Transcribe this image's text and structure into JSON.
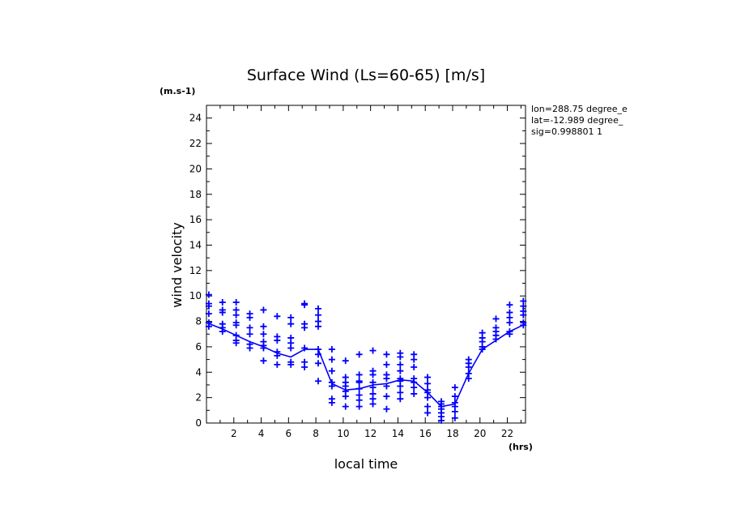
{
  "chart_data": {
    "type": "scatter",
    "title": "Surface Wind  (Ls=60-65) [m/s]",
    "xlabel": "local time",
    "ylabel": "wind velocity",
    "x_unit": "(hrs)",
    "y_unit": "(m.s-1)",
    "info": [
      "lon=288.75 degree_e",
      "lat=-12.989 degree_",
      "sig=0.998801 1"
    ],
    "xlim": [
      0,
      23.33
    ],
    "ylim": [
      0,
      25
    ],
    "xticks": [
      2,
      4,
      6,
      8,
      10,
      12,
      14,
      16,
      18,
      20,
      22
    ],
    "yticks": [
      0,
      2,
      4,
      6,
      8,
      10,
      12,
      14,
      16,
      18,
      20,
      22,
      24
    ],
    "grid": false,
    "color": "#0000ff",
    "series": [
      {
        "kind": "line",
        "x": [
          0,
          1.17,
          2.17,
          3.17,
          4.17,
          5.17,
          6.17,
          7.17,
          8.17,
          9.17,
          10.17,
          11.17,
          12.17,
          13.17,
          14.17,
          15.17,
          16.17,
          17.17,
          18.17,
          19.17,
          20.17,
          21.17,
          22.17,
          23.33
        ],
        "y": [
          7.9,
          7.4,
          6.9,
          6.4,
          6.0,
          5.5,
          5.2,
          5.8,
          5.8,
          3.1,
          2.6,
          2.7,
          3.0,
          3.1,
          3.4,
          3.3,
          2.4,
          1.3,
          1.5,
          3.9,
          5.8,
          6.5,
          7.2,
          7.8
        ]
      },
      {
        "kind": "markers",
        "marker": "+",
        "points": [
          [
            0.17,
            10.1
          ],
          [
            0.17,
            9.4
          ],
          [
            0.17,
            9.2
          ],
          [
            0.17,
            8.6
          ],
          [
            0.17,
            7.9
          ],
          [
            0.17,
            7.6
          ],
          [
            1.17,
            9.5
          ],
          [
            1.17,
            8.9
          ],
          [
            1.17,
            8.7
          ],
          [
            1.17,
            7.8
          ],
          [
            1.17,
            7.5
          ],
          [
            1.17,
            7.2
          ],
          [
            2.17,
            9.5
          ],
          [
            2.17,
            8.9
          ],
          [
            2.17,
            8.5
          ],
          [
            2.17,
            7.9
          ],
          [
            2.17,
            7.7
          ],
          [
            2.17,
            6.9
          ],
          [
            2.17,
            6.5
          ],
          [
            2.17,
            6.3
          ],
          [
            3.17,
            8.6
          ],
          [
            3.17,
            8.3
          ],
          [
            3.17,
            7.5
          ],
          [
            3.17,
            7.0
          ],
          [
            3.17,
            6.2
          ],
          [
            3.17,
            5.9
          ],
          [
            4.17,
            8.9
          ],
          [
            4.17,
            7.6
          ],
          [
            4.17,
            7.0
          ],
          [
            4.17,
            6.4
          ],
          [
            4.17,
            6.1
          ],
          [
            4.17,
            5.9
          ],
          [
            4.17,
            4.9
          ],
          [
            5.17,
            8.4
          ],
          [
            5.17,
            6.8
          ],
          [
            5.17,
            6.5
          ],
          [
            5.17,
            5.6
          ],
          [
            5.17,
            5.3
          ],
          [
            5.17,
            4.6
          ],
          [
            6.17,
            8.3
          ],
          [
            6.17,
            7.8
          ],
          [
            6.17,
            6.7
          ],
          [
            6.17,
            6.3
          ],
          [
            6.17,
            5.9
          ],
          [
            6.17,
            4.8
          ],
          [
            6.17,
            4.6
          ],
          [
            7.17,
            9.4
          ],
          [
            7.17,
            9.3
          ],
          [
            7.17,
            7.8
          ],
          [
            7.17,
            7.5
          ],
          [
            7.17,
            5.9
          ],
          [
            7.17,
            4.8
          ],
          [
            7.17,
            4.4
          ],
          [
            8.17,
            9.0
          ],
          [
            8.17,
            8.5
          ],
          [
            8.17,
            8.0
          ],
          [
            8.17,
            7.6
          ],
          [
            8.17,
            5.8
          ],
          [
            8.17,
            5.4
          ],
          [
            8.17,
            4.7
          ],
          [
            8.17,
            3.3
          ],
          [
            9.17,
            5.8
          ],
          [
            9.17,
            5.0
          ],
          [
            9.17,
            4.1
          ],
          [
            9.17,
            3.2
          ],
          [
            9.17,
            2.9
          ],
          [
            9.17,
            1.9
          ],
          [
            9.17,
            1.6
          ],
          [
            10.17,
            4.9
          ],
          [
            10.17,
            3.6
          ],
          [
            10.17,
            3.2
          ],
          [
            10.17,
            2.9
          ],
          [
            10.17,
            2.5
          ],
          [
            10.17,
            2.1
          ],
          [
            10.17,
            1.3
          ],
          [
            11.17,
            5.4
          ],
          [
            11.17,
            3.8
          ],
          [
            11.17,
            3.3
          ],
          [
            11.17,
            3.2
          ],
          [
            11.17,
            2.7
          ],
          [
            11.17,
            2.2
          ],
          [
            11.17,
            1.8
          ],
          [
            11.17,
            1.3
          ],
          [
            12.17,
            5.7
          ],
          [
            12.17,
            4.1
          ],
          [
            12.17,
            3.8
          ],
          [
            12.17,
            3.2
          ],
          [
            12.17,
            2.8
          ],
          [
            12.17,
            2.3
          ],
          [
            12.17,
            1.9
          ],
          [
            12.17,
            1.5
          ],
          [
            13.17,
            5.4
          ],
          [
            13.17,
            4.6
          ],
          [
            13.17,
            3.8
          ],
          [
            13.17,
            3.5
          ],
          [
            13.17,
            2.9
          ],
          [
            13.17,
            2.1
          ],
          [
            13.17,
            1.1
          ],
          [
            14.17,
            5.5
          ],
          [
            14.17,
            5.2
          ],
          [
            14.17,
            4.6
          ],
          [
            14.17,
            4.1
          ],
          [
            14.17,
            3.5
          ],
          [
            14.17,
            3.3
          ],
          [
            14.17,
            2.9
          ],
          [
            14.17,
            2.4
          ],
          [
            14.17,
            1.9
          ],
          [
            15.17,
            5.4
          ],
          [
            15.17,
            5.0
          ],
          [
            15.17,
            4.4
          ],
          [
            15.17,
            3.5
          ],
          [
            15.17,
            3.2
          ],
          [
            15.17,
            2.8
          ],
          [
            15.17,
            2.3
          ],
          [
            16.17,
            3.6
          ],
          [
            16.17,
            3.1
          ],
          [
            16.17,
            2.6
          ],
          [
            16.17,
            2.4
          ],
          [
            16.17,
            2.0
          ],
          [
            16.17,
            1.3
          ],
          [
            16.17,
            0.8
          ],
          [
            17.17,
            1.7
          ],
          [
            17.17,
            1.5
          ],
          [
            17.17,
            1.3
          ],
          [
            17.17,
            1.1
          ],
          [
            17.17,
            0.8
          ],
          [
            17.17,
            0.5
          ],
          [
            17.17,
            0.2
          ],
          [
            18.17,
            2.8
          ],
          [
            18.17,
            2.1
          ],
          [
            18.17,
            1.6
          ],
          [
            18.17,
            1.3
          ],
          [
            18.17,
            0.9
          ],
          [
            18.17,
            0.4
          ],
          [
            19.17,
            5.0
          ],
          [
            19.17,
            4.7
          ],
          [
            19.17,
            4.4
          ],
          [
            19.17,
            3.9
          ],
          [
            19.17,
            3.5
          ],
          [
            20.17,
            7.1
          ],
          [
            20.17,
            6.7
          ],
          [
            20.17,
            6.4
          ],
          [
            20.17,
            6.0
          ],
          [
            20.17,
            5.8
          ],
          [
            21.17,
            8.2
          ],
          [
            21.17,
            7.5
          ],
          [
            21.17,
            7.2
          ],
          [
            21.17,
            6.9
          ],
          [
            21.17,
            6.6
          ],
          [
            22.17,
            9.3
          ],
          [
            22.17,
            8.7
          ],
          [
            22.17,
            8.3
          ],
          [
            22.17,
            7.9
          ],
          [
            22.17,
            7.2
          ],
          [
            22.17,
            7.0
          ],
          [
            23.17,
            9.6
          ],
          [
            23.17,
            9.2
          ],
          [
            23.17,
            8.8
          ],
          [
            23.17,
            8.5
          ],
          [
            23.17,
            7.9
          ],
          [
            23.17,
            7.7
          ]
        ]
      }
    ]
  }
}
